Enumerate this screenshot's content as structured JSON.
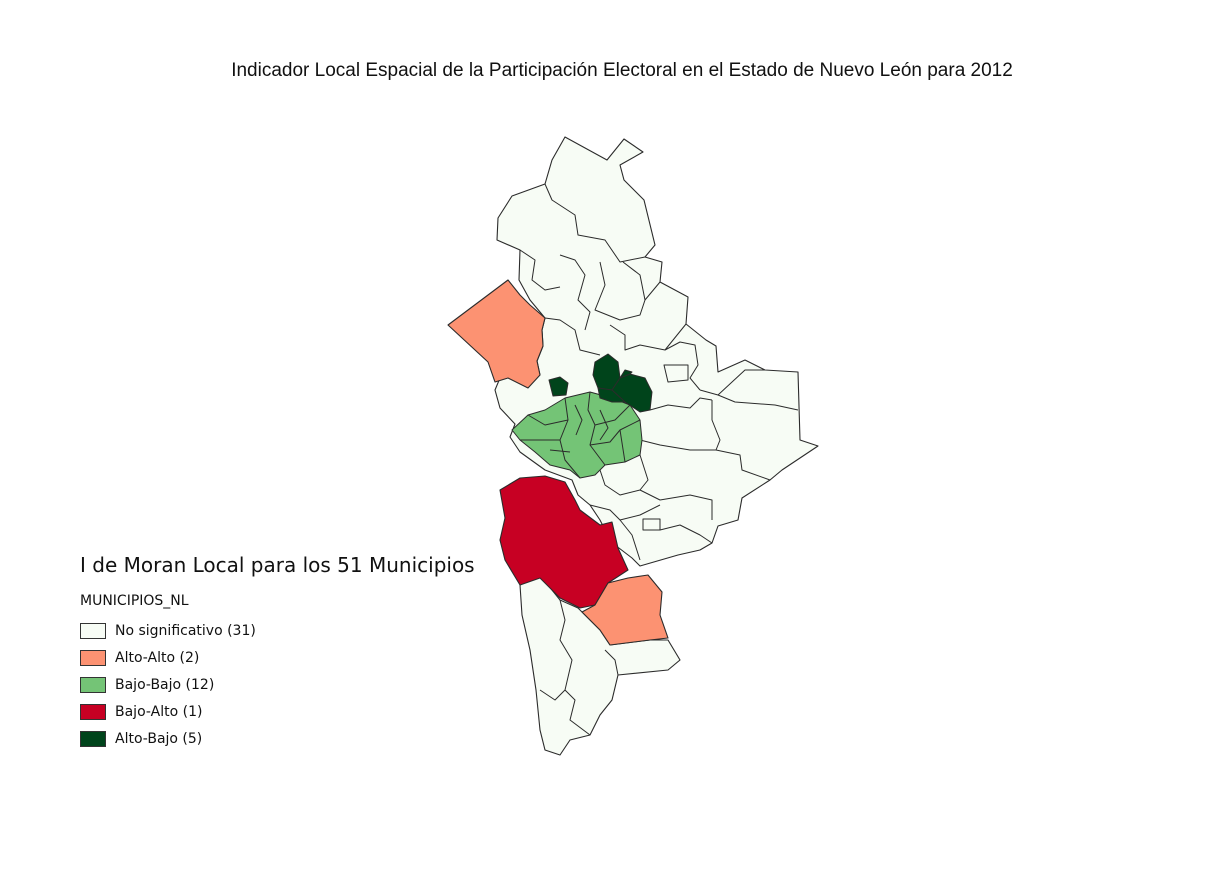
{
  "title": "Indicador Local Espacial de la Participación Electoral en el Estado de Nuevo León para 2012",
  "legend": {
    "title": "I de Moran Local para los 51 Municipios",
    "layer_name": "MUNICIPIOS_NL",
    "items": [
      {
        "label": "No significativo (31)",
        "color": "#f7fcf5"
      },
      {
        "label": "Alto-Alto (2)",
        "color": "#fc9272"
      },
      {
        "label": "Bajo-Bajo (12)",
        "color": "#74c476"
      },
      {
        "label": "Bajo-Alto (1)",
        "color": "#c70023"
      },
      {
        "label": "Alto-Bajo (5)",
        "color": "#00441b"
      }
    ]
  },
  "colors": {
    "border": "#2b2b2b"
  }
}
